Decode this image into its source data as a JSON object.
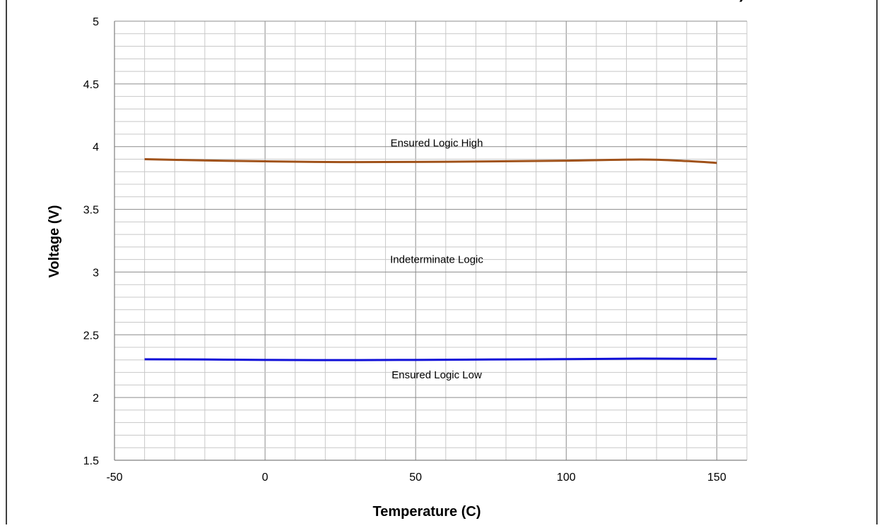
{
  "chart_data": {
    "type": "line",
    "title_visible": ")",
    "xlabel": "Temperature (C)",
    "ylabel": "Voltage (V)",
    "xlim": [
      -50,
      160
    ],
    "ylim": [
      1.5,
      5
    ],
    "x_major_step": 50,
    "x_minor_step": 10,
    "y_major_step": 0.5,
    "y_minor_step": 0.1,
    "grid": true,
    "x_tick_labels": [
      "-50",
      "0",
      "50",
      "100",
      "150"
    ],
    "y_tick_labels": [
      "1.5",
      "2",
      "2.5",
      "3",
      "3.5",
      "4",
      "4.5",
      "5"
    ],
    "series": [
      {
        "color": "#a0521a",
        "x": [
          -40,
          -20,
          0,
          25,
          50,
          75,
          100,
          125,
          140,
          150
        ],
        "y": [
          3.9,
          3.89,
          3.883,
          3.877,
          3.878,
          3.882,
          3.888,
          3.897,
          3.885,
          3.87
        ]
      },
      {
        "color": "#1010d8",
        "x": [
          -40,
          -20,
          0,
          25,
          50,
          75,
          100,
          125,
          150
        ],
        "y": [
          2.305,
          2.303,
          2.3,
          2.298,
          2.3,
          2.303,
          2.306,
          2.31,
          2.308
        ]
      }
    ],
    "annotations": [
      {
        "text": "Ensured Logic High",
        "x": 57,
        "y": 4.03
      },
      {
        "text": "Indeterminate Logic",
        "x": 57,
        "y": 3.1
      },
      {
        "text": "Ensured Logic Low",
        "x": 57,
        "y": 2.18
      }
    ]
  }
}
